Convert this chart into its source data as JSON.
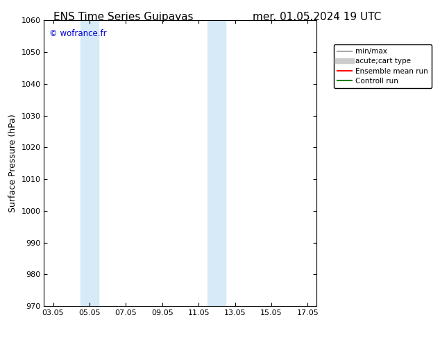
{
  "title_left": "ENS Time Series Guipavas",
  "title_right": "mer. 01.05.2024 19 UTC",
  "ylabel": "Surface Pressure (hPa)",
  "ylim": [
    970,
    1060
  ],
  "yticks": [
    970,
    980,
    990,
    1000,
    1010,
    1020,
    1030,
    1040,
    1050,
    1060
  ],
  "xtick_labels": [
    "03.05",
    "05.05",
    "07.05",
    "09.05",
    "11.05",
    "13.05",
    "15.05",
    "17.05"
  ],
  "xtick_positions": [
    0,
    2,
    4,
    6,
    8,
    10,
    12,
    14
  ],
  "xlim": [
    -0.5,
    14.5
  ],
  "shaded_bands": [
    {
      "x_start": 1.5,
      "x_end": 2.5
    },
    {
      "x_start": 8.5,
      "x_end": 9.5
    }
  ],
  "watermark": "© wofrance.fr",
  "watermark_color": "#0000cc",
  "background_color": "#ffffff",
  "plot_bg_color": "#ffffff",
  "band_color": "#d6eaf8",
  "legend_entries": [
    {
      "label": "min/max",
      "color": "#aaaaaa",
      "lw": 1.5,
      "ls": "-"
    },
    {
      "label": "acute;cart type",
      "color": "#cccccc",
      "lw": 6,
      "ls": "-"
    },
    {
      "label": "Ensemble mean run",
      "color": "#ff0000",
      "lw": 1.5,
      "ls": "-"
    },
    {
      "label": "Controll run",
      "color": "#008000",
      "lw": 1.5,
      "ls": "-"
    }
  ],
  "title_fontsize": 11,
  "ylabel_fontsize": 9,
  "tick_fontsize": 8
}
